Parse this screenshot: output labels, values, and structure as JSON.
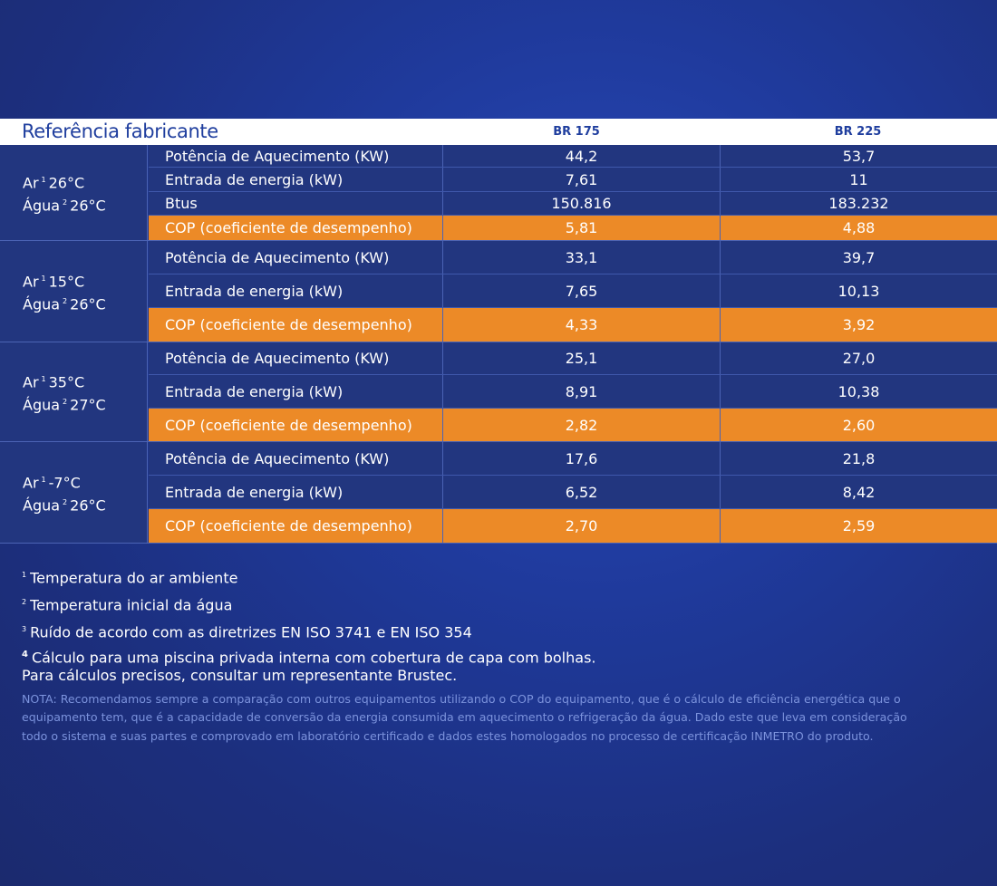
{
  "table": {
    "header": {
      "title": "Referência fabricante",
      "models": [
        "BR 175",
        "BR 225"
      ]
    },
    "groups": [
      {
        "ar": "Ar",
        "ar_sup": "1",
        "ar_temp": "26°C",
        "agua": "Água",
        "agua_sup": "2",
        "agua_temp": "26°C",
        "rows": [
          {
            "label": "Potência de Aquecimento (KW)",
            "v1": "44,2",
            "v2": "53,7"
          },
          {
            "label": "Entrada de energia (kW)",
            "v1": "7,61",
            "v2": "11"
          },
          {
            "label": "Btus",
            "v1": "150.816",
            "v2": "183.232"
          },
          {
            "label": "COP (coeficiente de desempenho)",
            "v1": "5,81",
            "v2": "4,88",
            "cop": true
          }
        ]
      },
      {
        "ar": "Ar",
        "ar_sup": "1",
        "ar_temp": "15°C",
        "agua": "Água",
        "agua_sup": "2",
        "agua_temp": "26°C",
        "rows": [
          {
            "label": "Potência de Aquecimento (KW)",
            "v1": "33,1",
            "v2": "39,7"
          },
          {
            "label": "Entrada de energia (kW)",
            "v1": "7,65",
            "v2": "10,13"
          },
          {
            "label": "COP (coeficiente de desempenho)",
            "v1": "4,33",
            "v2": "3,92",
            "cop": true
          }
        ]
      },
      {
        "ar": "Ar",
        "ar_sup": "1",
        "ar_temp": "35°C",
        "agua": "Água",
        "agua_sup": "2",
        "agua_temp": "27°C",
        "rows": [
          {
            "label": "Potência de Aquecimento (KW)",
            "v1": "25,1",
            "v2": "27,0"
          },
          {
            "label": "Entrada de energia (kW)",
            "v1": "8,91",
            "v2": "10,38"
          },
          {
            "label": "COP (coeficiente de desempenho)",
            "v1": "2,82",
            "v2": "2,60",
            "cop": true
          }
        ]
      },
      {
        "ar": "Ar",
        "ar_sup": "1",
        "ar_temp": "-7°C",
        "agua": "Água",
        "agua_sup": "2",
        "agua_temp": "26°C",
        "rows": [
          {
            "label": "Potência de Aquecimento (KW)",
            "v1": "17,6",
            "v2": "21,8"
          },
          {
            "label": "Entrada de energia (kW)",
            "v1": "6,52",
            "v2": "8,42"
          },
          {
            "label": "COP (coeficiente de desempenho)",
            "v1": "2,70",
            "v2": "2,59",
            "cop": true
          }
        ]
      }
    ]
  },
  "footnotes": {
    "n1_mark": "1",
    "n1": "Temperatura do ar ambiente",
    "n2_mark": "2",
    "n2": "Temperatura inicial da água",
    "n3_mark": "3",
    "n3": "Ruído de acordo com as diretrizes EN ISO 3741 e EN ISO 354",
    "n4_mark": "4",
    "n4_line1": "Cálculo para uma piscina privada interna com cobertura de capa com bolhas.",
    "n4_line2": "Para cálculos precisos, consultar um representante Brustec.",
    "nota": "NOTA: Recomendamos sempre a comparação com outros equipamentos utilizando o COP do equipamento, que é o cálculo de eficiência energética que o equipamento tem, que é a capacidade de conversão da energia consumida em aquecimento o refrigeração da água. Dado este que leva em consideração todo o sistema e suas partes e comprovado em laboratório certificado e dados estes homologados no processo de certificação INMETRO do produto."
  },
  "colors": {
    "accent_orange": "#ec8a27",
    "header_text": "#1f3e9e",
    "row_blue": "#22367f"
  }
}
